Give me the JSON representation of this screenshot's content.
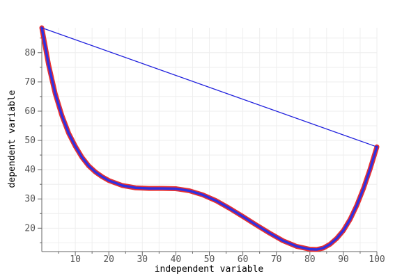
{
  "chart_data": {
    "type": "line",
    "xlabel": "independent variable",
    "ylabel": "dependent variable",
    "xlim": [
      0,
      100
    ],
    "ylim": [
      12,
      88.5
    ],
    "x_ticks": [
      10,
      20,
      30,
      40,
      50,
      60,
      70,
      80,
      90,
      100
    ],
    "y_ticks": [
      20,
      30,
      40,
      50,
      60,
      70,
      80
    ],
    "grid": true,
    "legend": "none",
    "colors": {
      "curve_outline": "#e8302f",
      "curve": "#3030e0",
      "chord": "#2020dd",
      "grid": "#eeeeee",
      "axis": "#666666",
      "tick_label": "#555555"
    },
    "series": [
      {
        "style": "thick-outlined",
        "x": [
          0,
          2,
          4,
          6,
          8,
          10,
          12,
          14,
          16,
          18,
          20,
          24,
          28,
          32,
          36,
          40,
          44,
          48,
          52,
          56,
          60,
          64,
          68,
          72,
          76,
          80,
          82,
          84,
          86,
          88,
          90,
          92,
          94,
          96,
          98,
          100
        ],
        "y": [
          88.5,
          76,
          66,
          58.5,
          52.5,
          48,
          44.2,
          41.3,
          39.2,
          37.6,
          36.3,
          34.6,
          33.8,
          33.6,
          33.6,
          33.5,
          32.8,
          31.4,
          29.4,
          26.8,
          24,
          21.1,
          18.3,
          15.7,
          13.8,
          12.8,
          12.7,
          13.2,
          14.5,
          16.5,
          19.2,
          23,
          27.8,
          33.6,
          40.3,
          47.8
        ]
      },
      {
        "style": "straight-line",
        "x": [
          0,
          100
        ],
        "y": [
          88.5,
          47.8
        ]
      }
    ]
  }
}
